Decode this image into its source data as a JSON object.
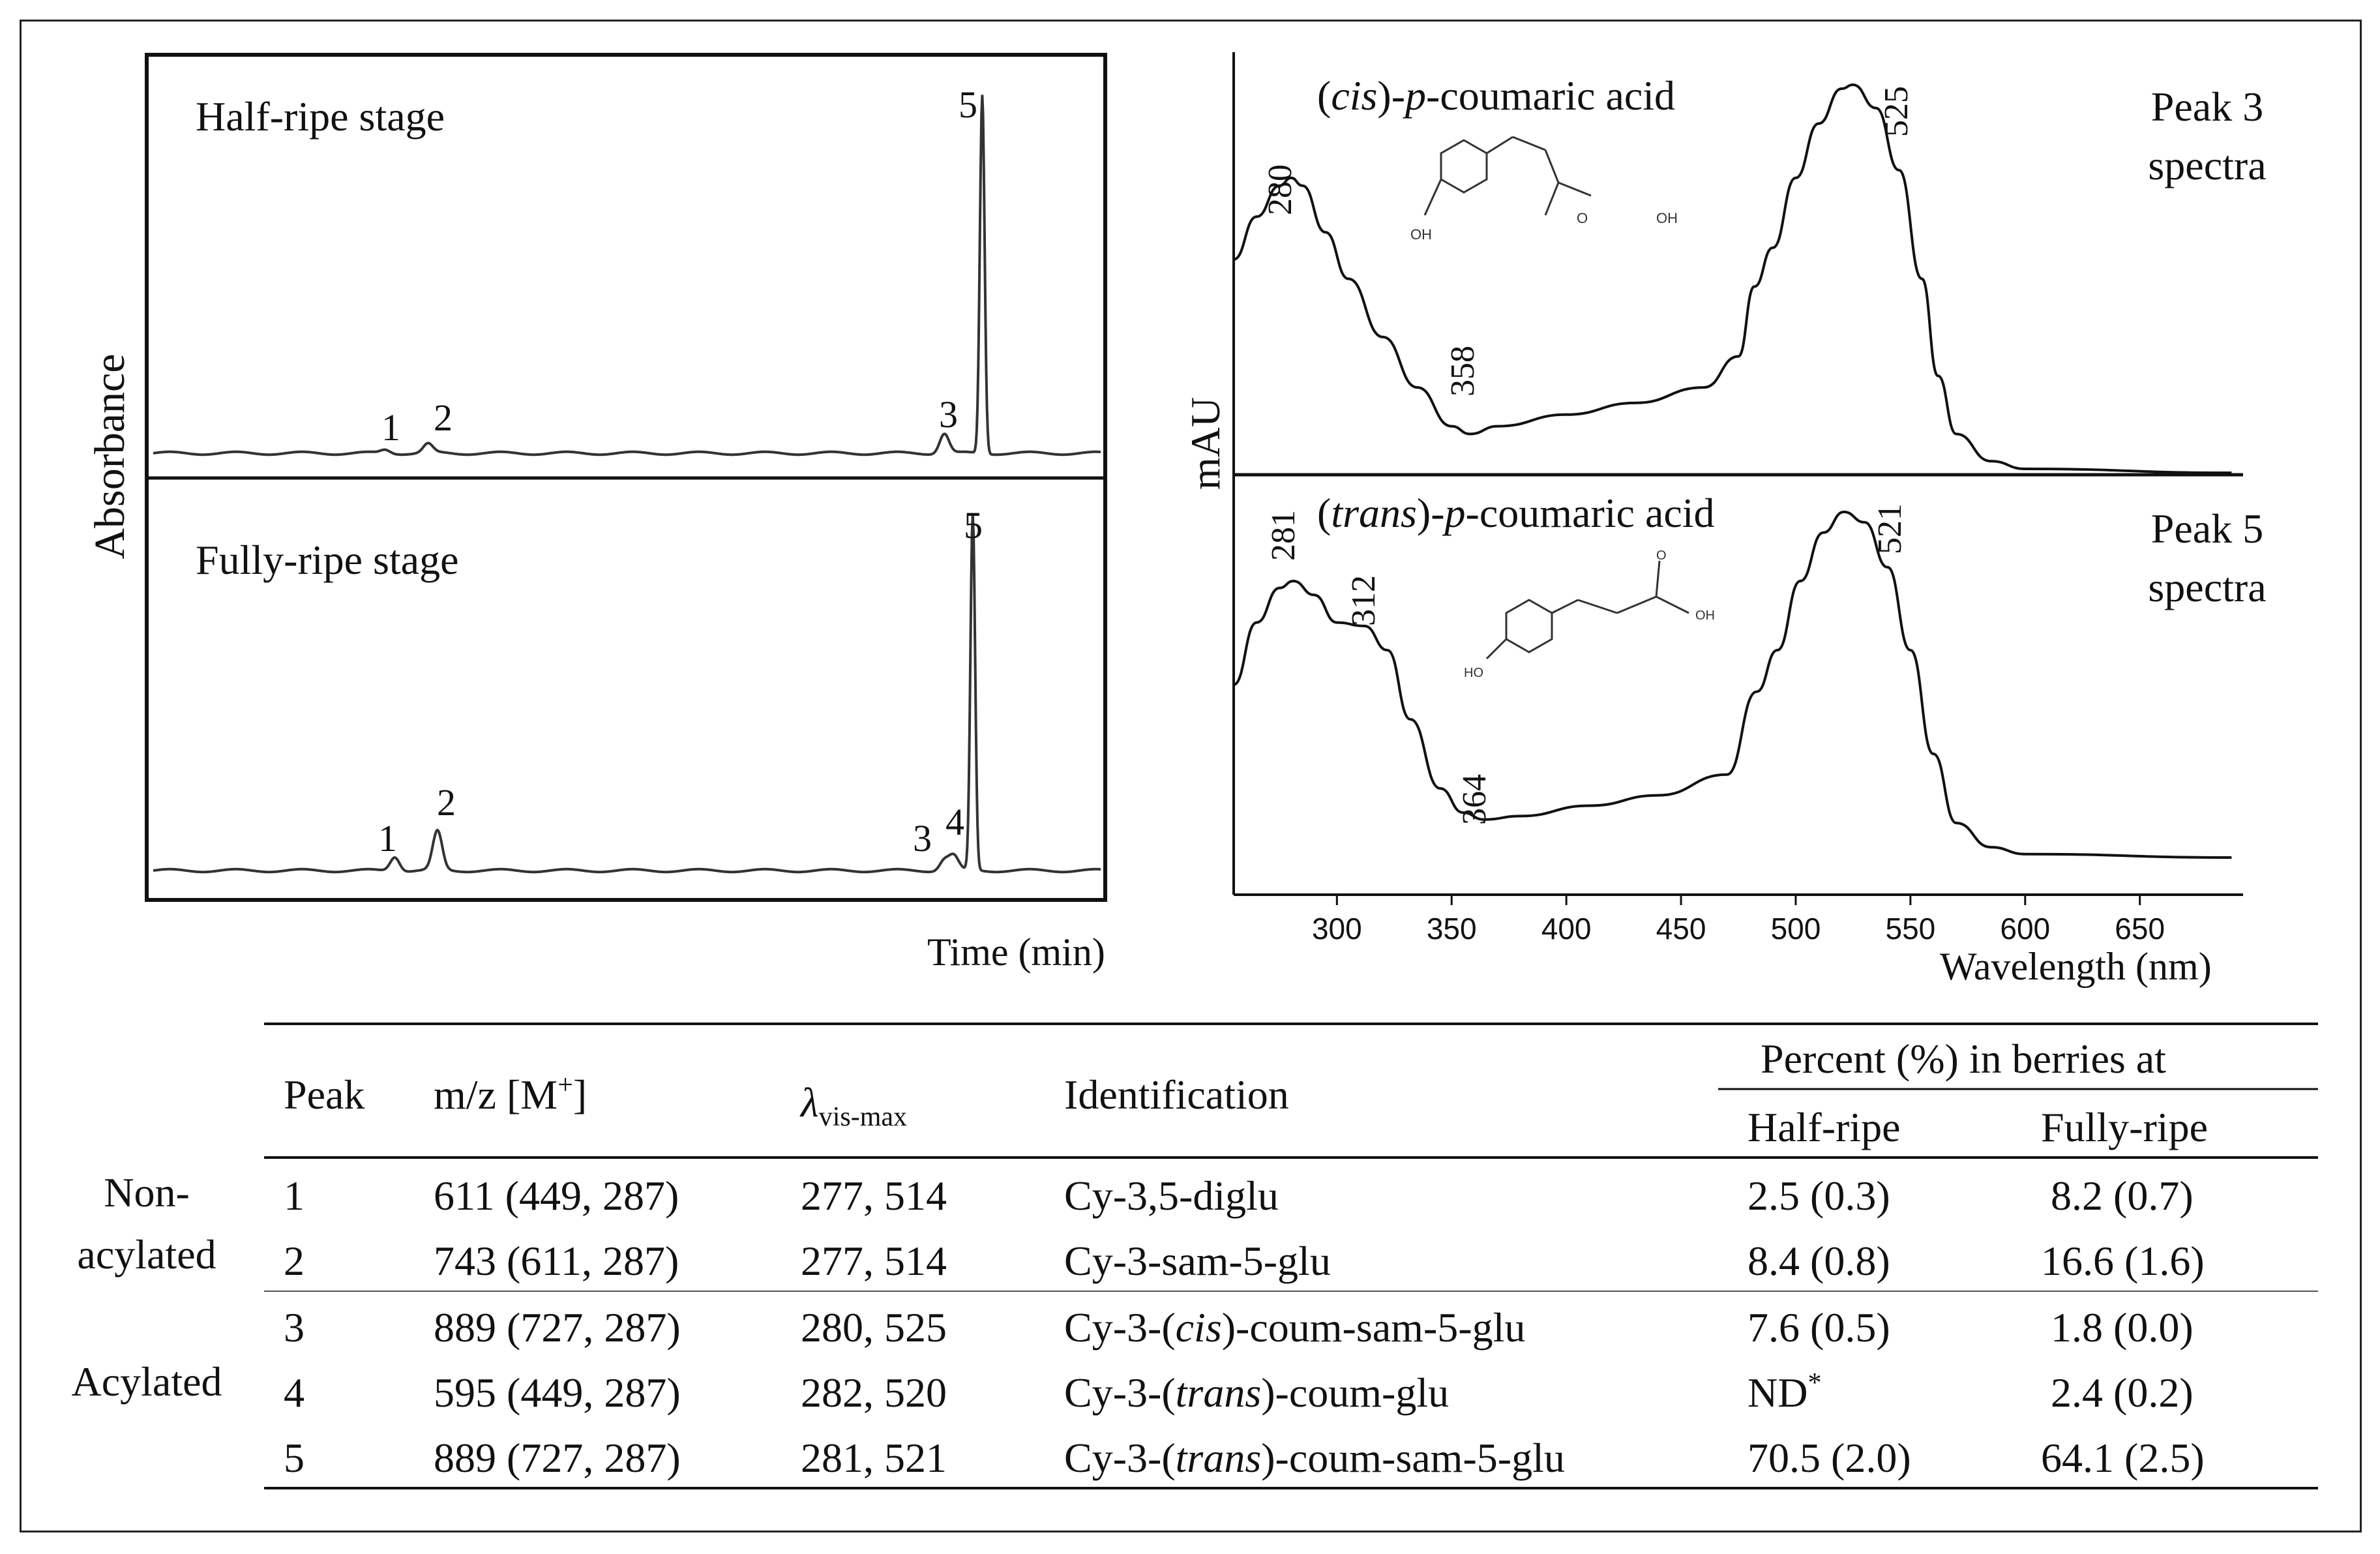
{
  "figure": {
    "left_panel": {
      "y_label": "Absorbance",
      "x_label": "Time (min)",
      "panels": [
        {
          "title": "Half-ripe stage",
          "peak_labels": [
            "1",
            "2",
            "3",
            "5"
          ],
          "peaks": [
            {
              "label": "1",
              "rt": 0.245,
              "height": 0.01
            },
            {
              "label": "2",
              "rt": 0.29,
              "height": 0.025
            },
            {
              "label": "3",
              "rt": 0.835,
              "height": 0.055
            },
            {
              "label": "5",
              "rt": 0.875,
              "height": 1.0
            }
          ]
        },
        {
          "title": "Fully-ripe stage",
          "peak_labels": [
            "1",
            "2",
            "3",
            "4",
            "5"
          ],
          "peaks": [
            {
              "label": "1",
              "rt": 0.255,
              "height": 0.04
            },
            {
              "label": "2",
              "rt": 0.3,
              "height": 0.11
            },
            {
              "label": "3",
              "rt": 0.835,
              "height": 0.03
            },
            {
              "label": "4",
              "rt": 0.845,
              "height": 0.04
            },
            {
              "label": "5",
              "rt": 0.865,
              "height": 1.0
            }
          ]
        }
      ]
    },
    "right_panel": {
      "y_label": "mAU",
      "x_label": "Wavelength (nm)",
      "x_ticks": [
        "300",
        "350",
        "400",
        "450",
        "500",
        "550",
        "600",
        "650"
      ],
      "spectra": [
        {
          "compound_prefix": "(",
          "compound_italic": "cis",
          "compound_mid": ")-",
          "compound_italic2": "p",
          "compound_suffix": "-coumaric acid",
          "peak_title_line1": "Peak 3",
          "peak_title_line2": "spectra",
          "annotations": [
            "280",
            "358",
            "525"
          ],
          "points": [
            [
              255,
              0.55
            ],
            [
              265,
              0.66
            ],
            [
              275,
              0.74
            ],
            [
              280,
              0.76
            ],
            [
              285,
              0.74
            ],
            [
              295,
              0.62
            ],
            [
              305,
              0.5
            ],
            [
              320,
              0.35
            ],
            [
              335,
              0.22
            ],
            [
              350,
              0.12
            ],
            [
              358,
              0.1
            ],
            [
              370,
              0.12
            ],
            [
              400,
              0.15
            ],
            [
              430,
              0.18
            ],
            [
              460,
              0.22
            ],
            [
              475,
              0.3
            ],
            [
              482,
              0.48
            ],
            [
              490,
              0.58
            ],
            [
              500,
              0.76
            ],
            [
              510,
              0.9
            ],
            [
              520,
              0.99
            ],
            [
              525,
              1.0
            ],
            [
              535,
              0.94
            ],
            [
              545,
              0.78
            ],
            [
              555,
              0.5
            ],
            [
              562,
              0.25
            ],
            [
              570,
              0.1
            ],
            [
              585,
              0.03
            ],
            [
              600,
              0.01
            ],
            [
              690,
              0.0
            ]
          ]
        },
        {
          "compound_prefix": "(",
          "compound_italic": "trans",
          "compound_mid": ")-",
          "compound_italic2": "p",
          "compound_suffix": "-coumaric acid",
          "peak_title_line1": "Peak 5",
          "peak_title_line2": "spectra",
          "annotations": [
            "281",
            "312",
            "364",
            "521"
          ],
          "points": [
            [
              255,
              0.5
            ],
            [
              265,
              0.68
            ],
            [
              275,
              0.78
            ],
            [
              281,
              0.8
            ],
            [
              290,
              0.76
            ],
            [
              300,
              0.68
            ],
            [
              312,
              0.67
            ],
            [
              322,
              0.6
            ],
            [
              332,
              0.4
            ],
            [
              345,
              0.2
            ],
            [
              355,
              0.13
            ],
            [
              364,
              0.11
            ],
            [
              380,
              0.12
            ],
            [
              410,
              0.15
            ],
            [
              440,
              0.18
            ],
            [
              470,
              0.24
            ],
            [
              483,
              0.48
            ],
            [
              492,
              0.6
            ],
            [
              502,
              0.8
            ],
            [
              512,
              0.94
            ],
            [
              521,
              1.0
            ],
            [
              530,
              0.97
            ],
            [
              540,
              0.84
            ],
            [
              550,
              0.6
            ],
            [
              560,
              0.3
            ],
            [
              570,
              0.1
            ],
            [
              585,
              0.03
            ],
            [
              600,
              0.01
            ],
            [
              690,
              0.0
            ]
          ]
        }
      ]
    }
  },
  "table": {
    "headers": {
      "peak": "Peak",
      "mz_main": "m/z [M",
      "mz_sup": "+",
      "mz_close": "]",
      "lambda_symbol": "λ",
      "lambda_sub": "vis-max",
      "identification": "Identification",
      "percent_group": "Percent (%) in berries at",
      "half": "Half-ripe",
      "fully": "Fully-ripe"
    },
    "groups": [
      {
        "line1": "Non-",
        "line2": "acylated"
      },
      {
        "line1": "Acylated"
      }
    ],
    "rows": [
      {
        "peak": "1",
        "mz": "611 (449, 287)",
        "lambda": "277, 514",
        "id_pre": "Cy-3,5-diglu",
        "id_it": "",
        "id_post": "",
        "half": "2.5 (0.3)",
        "fully": "8.2 (0.7)"
      },
      {
        "peak": "2",
        "mz": "743 (611, 287)",
        "lambda": "277, 514",
        "id_pre": "Cy-3-sam-5-glu",
        "id_it": "",
        "id_post": "",
        "half": "8.4 (0.8)",
        "fully": "16.6 (1.6)"
      },
      {
        "peak": "3",
        "mz": "889 (727, 287)",
        "lambda": "280, 525",
        "id_pre": "Cy-3-(",
        "id_it": "cis",
        "id_post": ")-coum-sam-5-glu",
        "half": "7.6 (0.5)",
        "fully": "1.8 (0.0)"
      },
      {
        "peak": "4",
        "mz": "595 (449, 287)",
        "lambda": "282, 520",
        "id_pre": "Cy-3-(",
        "id_it": "trans",
        "id_post": ")-coum-glu",
        "half": "ND",
        "half_sup": "*",
        "fully": "2.4 (0.2)"
      },
      {
        "peak": "5",
        "mz": "889 (727, 287)",
        "lambda": "281, 521",
        "id_pre": "Cy-3-(",
        "id_it": "trans",
        "id_post": ")-coum-sam-5-glu",
        "half": "70.5 (2.0)",
        "fully": "64.1 (2.5)"
      }
    ]
  },
  "chart_data": [
    {
      "type": "line",
      "title": "Half-ripe stage",
      "xlabel": "Time (min)",
      "ylabel": "Absorbance",
      "series": [
        {
          "name": "chromatogram",
          "peaks": [
            "1",
            "2",
            "3",
            "5"
          ]
        }
      ]
    },
    {
      "type": "line",
      "title": "Fully-ripe stage",
      "xlabel": "Time (min)",
      "ylabel": "Absorbance",
      "series": [
        {
          "name": "chromatogram",
          "peaks": [
            "1",
            "2",
            "3",
            "4",
            "5"
          ]
        }
      ]
    },
    {
      "type": "line",
      "title": "Peak 3 spectra",
      "xlabel": "Wavelength (nm)",
      "ylabel": "mAU",
      "x_ticks": [
        300,
        350,
        400,
        450,
        500,
        550,
        600,
        650
      ],
      "xlim": [
        255,
        695
      ],
      "annotated_maxima_nm": [
        280,
        358,
        525
      ]
    },
    {
      "type": "line",
      "title": "Peak 5 spectra",
      "xlabel": "Wavelength (nm)",
      "ylabel": "mAU",
      "x_ticks": [
        300,
        350,
        400,
        450,
        500,
        550,
        600,
        650
      ],
      "xlim": [
        255,
        695
      ],
      "annotated_maxima_nm": [
        281,
        312,
        364,
        521
      ]
    },
    {
      "type": "table",
      "columns": [
        "Peak",
        "m/z [M+]",
        "λvis-max",
        "Identification",
        "Half-ripe",
        "Fully-ripe"
      ],
      "rows": [
        [
          "1",
          "611 (449, 287)",
          "277, 514",
          "Cy-3,5-diglu",
          "2.5 (0.3)",
          "8.2 (0.7)"
        ],
        [
          "2",
          "743 (611, 287)",
          "277, 514",
          "Cy-3-sam-5-glu",
          "8.4 (0.8)",
          "16.6 (1.6)"
        ],
        [
          "3",
          "889 (727, 287)",
          "280, 525",
          "Cy-3-(cis)-coum-sam-5-glu",
          "7.6 (0.5)",
          "1.8 (0.0)"
        ],
        [
          "4",
          "595 (449, 287)",
          "282, 520",
          "Cy-3-(trans)-coum-glu",
          "ND*",
          "2.4 (0.2)"
        ],
        [
          "5",
          "889 (727, 287)",
          "281, 521",
          "Cy-3-(trans)-coum-sam-5-glu",
          "70.5 (2.0)",
          "64.1 (2.5)"
        ]
      ]
    }
  ]
}
